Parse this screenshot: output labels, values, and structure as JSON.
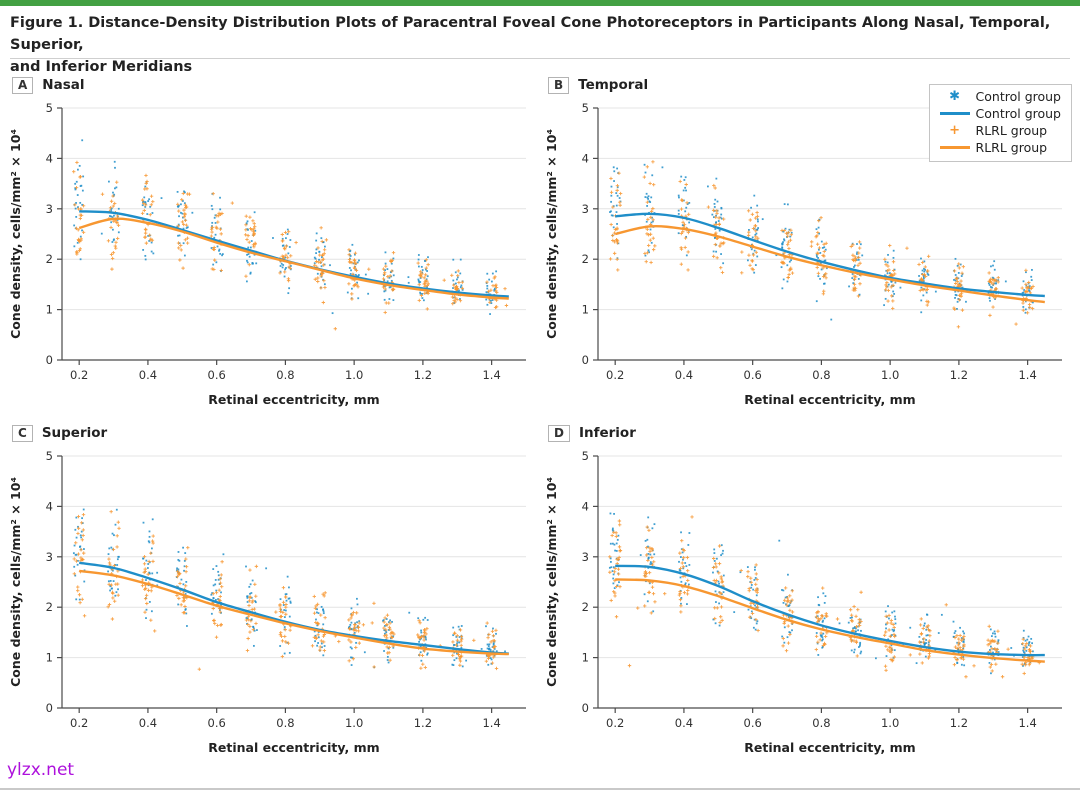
{
  "page": {
    "title_line1": "Figure 1. Distance-Density Distribution Plots of Paracentral Foveal Cone Photoreceptors in Participants Along Nasal, Temporal, Superior,",
    "title_line2": "and Inferior Meridians",
    "watermark": "ylzx.net"
  },
  "colors": {
    "control": "#1f8ec9",
    "rlrl": "#f79731",
    "grid": "#e4e4e4",
    "axis": "#4a4a4a",
    "tick_text": "#333333",
    "accent_bar": "#43a143",
    "watermark": "#ad10dc"
  },
  "legend": {
    "items": [
      {
        "marker": "asterisk",
        "color_key": "control",
        "label": "Control group"
      },
      {
        "marker": "line",
        "color_key": "control",
        "label": "Control group"
      },
      {
        "marker": "plus",
        "color_key": "rlrl",
        "label": "RLRL group"
      },
      {
        "marker": "line",
        "color_key": "rlrl",
        "label": "RLRL group"
      }
    ]
  },
  "axes": {
    "xlabel": "Retinal eccentricity, mm",
    "ylabel": "Cone density, cells/mm² × 10⁴",
    "x_ticks": [
      0.2,
      0.4,
      0.6,
      0.8,
      1.0,
      1.2,
      1.4
    ],
    "y_ticks": [
      0,
      1,
      2,
      3,
      4,
      5
    ],
    "x_range": [
      0.15,
      1.5
    ],
    "y_range": [
      0,
      5
    ]
  },
  "scatter_config": {
    "cluster_x": [
      0.2,
      0.3,
      0.4,
      0.5,
      0.6,
      0.7,
      0.8,
      0.9,
      1.0,
      1.1,
      1.2,
      1.3,
      1.4
    ],
    "points_per_cluster": 26,
    "stray_points_per_group": 18,
    "spread_first": 0.95,
    "spread_last": 0.36,
    "center_bias": 0.12,
    "x_jitter": 0.032,
    "y_min": 0.62,
    "y_max": 4.85
  },
  "chart_data": [
    {
      "type": "scatter",
      "panel": "A",
      "label": "Nasal",
      "x": [
        0.2,
        0.3,
        0.4,
        0.5,
        0.6,
        0.7,
        0.8,
        0.9,
        1.0,
        1.1,
        1.2,
        1.3,
        1.4,
        1.45
      ],
      "series": [
        {
          "name": "Control group",
          "values": [
            2.95,
            2.92,
            2.78,
            2.58,
            2.37,
            2.17,
            1.97,
            1.8,
            1.65,
            1.52,
            1.42,
            1.34,
            1.28,
            1.26
          ]
        },
        {
          "name": "RLRL group",
          "values": [
            2.62,
            2.8,
            2.72,
            2.55,
            2.33,
            2.13,
            1.96,
            1.79,
            1.62,
            1.49,
            1.39,
            1.3,
            1.24,
            1.22
          ]
        }
      ],
      "seed": 101
    },
    {
      "type": "scatter",
      "panel": "B",
      "label": "Temporal",
      "x": [
        0.2,
        0.3,
        0.4,
        0.5,
        0.6,
        0.7,
        0.8,
        0.9,
        1.0,
        1.1,
        1.2,
        1.3,
        1.4,
        1.45
      ],
      "series": [
        {
          "name": "Control group",
          "values": [
            2.85,
            2.9,
            2.82,
            2.62,
            2.38,
            2.15,
            1.95,
            1.78,
            1.63,
            1.52,
            1.42,
            1.35,
            1.29,
            1.27
          ]
        },
        {
          "name": "RLRL group",
          "values": [
            2.5,
            2.65,
            2.6,
            2.45,
            2.25,
            2.05,
            1.88,
            1.73,
            1.6,
            1.48,
            1.38,
            1.28,
            1.19,
            1.15
          ]
        }
      ],
      "seed": 202
    },
    {
      "type": "scatter",
      "panel": "C",
      "label": "Superior",
      "x": [
        0.2,
        0.3,
        0.4,
        0.5,
        0.6,
        0.7,
        0.8,
        0.9,
        1.0,
        1.1,
        1.2,
        1.3,
        1.4,
        1.45
      ],
      "series": [
        {
          "name": "Control group",
          "values": [
            2.88,
            2.78,
            2.58,
            2.35,
            2.1,
            1.9,
            1.71,
            1.55,
            1.43,
            1.33,
            1.25,
            1.17,
            1.1,
            1.08
          ]
        },
        {
          "name": "RLRL group",
          "values": [
            2.72,
            2.63,
            2.46,
            2.25,
            2.03,
            1.85,
            1.68,
            1.53,
            1.4,
            1.28,
            1.18,
            1.12,
            1.08,
            1.07
          ]
        }
      ],
      "seed": 303
    },
    {
      "type": "scatter",
      "panel": "D",
      "label": "Inferior",
      "x": [
        0.2,
        0.3,
        0.4,
        0.5,
        0.6,
        0.7,
        0.8,
        0.9,
        1.0,
        1.1,
        1.2,
        1.3,
        1.4,
        1.45
      ],
      "series": [
        {
          "name": "Control group",
          "values": [
            2.82,
            2.8,
            2.66,
            2.42,
            2.12,
            1.86,
            1.64,
            1.47,
            1.33,
            1.21,
            1.12,
            1.07,
            1.05,
            1.05
          ]
        },
        {
          "name": "RLRL group",
          "values": [
            2.55,
            2.53,
            2.42,
            2.22,
            1.98,
            1.75,
            1.56,
            1.41,
            1.28,
            1.15,
            1.06,
            0.99,
            0.94,
            0.92
          ]
        }
      ],
      "seed": 404
    }
  ]
}
